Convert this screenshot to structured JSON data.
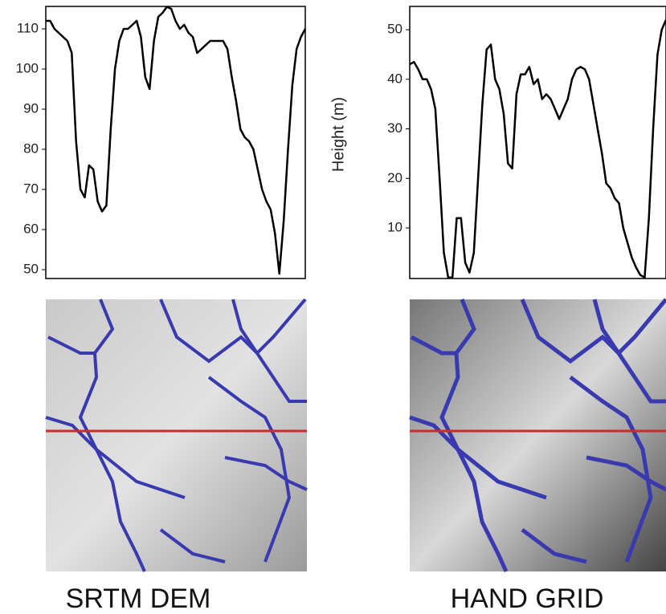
{
  "chart_data": [
    {
      "type": "line",
      "color": "#000000",
      "caption": "SRTM DEM",
      "ylim": [
        47.8,
        115.6
      ],
      "yticks": [
        50,
        60,
        70,
        80,
        90,
        100,
        110
      ],
      "values": [
        112,
        112,
        110,
        109,
        108,
        107,
        104,
        82,
        70,
        68,
        76,
        75,
        67,
        64.5,
        66,
        85,
        100,
        107,
        110,
        110,
        111,
        112,
        108,
        98,
        95,
        107,
        113,
        114,
        115.5,
        115,
        112,
        110,
        111,
        109,
        108,
        104,
        105,
        106,
        107,
        107,
        107,
        107,
        105,
        98,
        92,
        85,
        83,
        82,
        80,
        75,
        70,
        67,
        65,
        59,
        49,
        62,
        80,
        96,
        105,
        108,
        110
      ]
    },
    {
      "type": "line",
      "color": "#000000",
      "caption": "HAND GRID",
      "y_label": "Height (m)",
      "ylim": [
        -0.2,
        54.7
      ],
      "yticks": [
        10,
        20,
        30,
        40,
        50
      ],
      "values": [
        43,
        43.5,
        42,
        40,
        40,
        38,
        34,
        20,
        5,
        0,
        0,
        12,
        12,
        3,
        1,
        5,
        20,
        35,
        46,
        47,
        40,
        38,
        33,
        23,
        22,
        37,
        41,
        41,
        42.5,
        39,
        40,
        36,
        37,
        36,
        34,
        32,
        34,
        36,
        40,
        42,
        42.5,
        42,
        40,
        35,
        30,
        25,
        19,
        18,
        16,
        15,
        10,
        7,
        4,
        2,
        0.5,
        0,
        12,
        30,
        45,
        50,
        52
      ]
    }
  ]
}
